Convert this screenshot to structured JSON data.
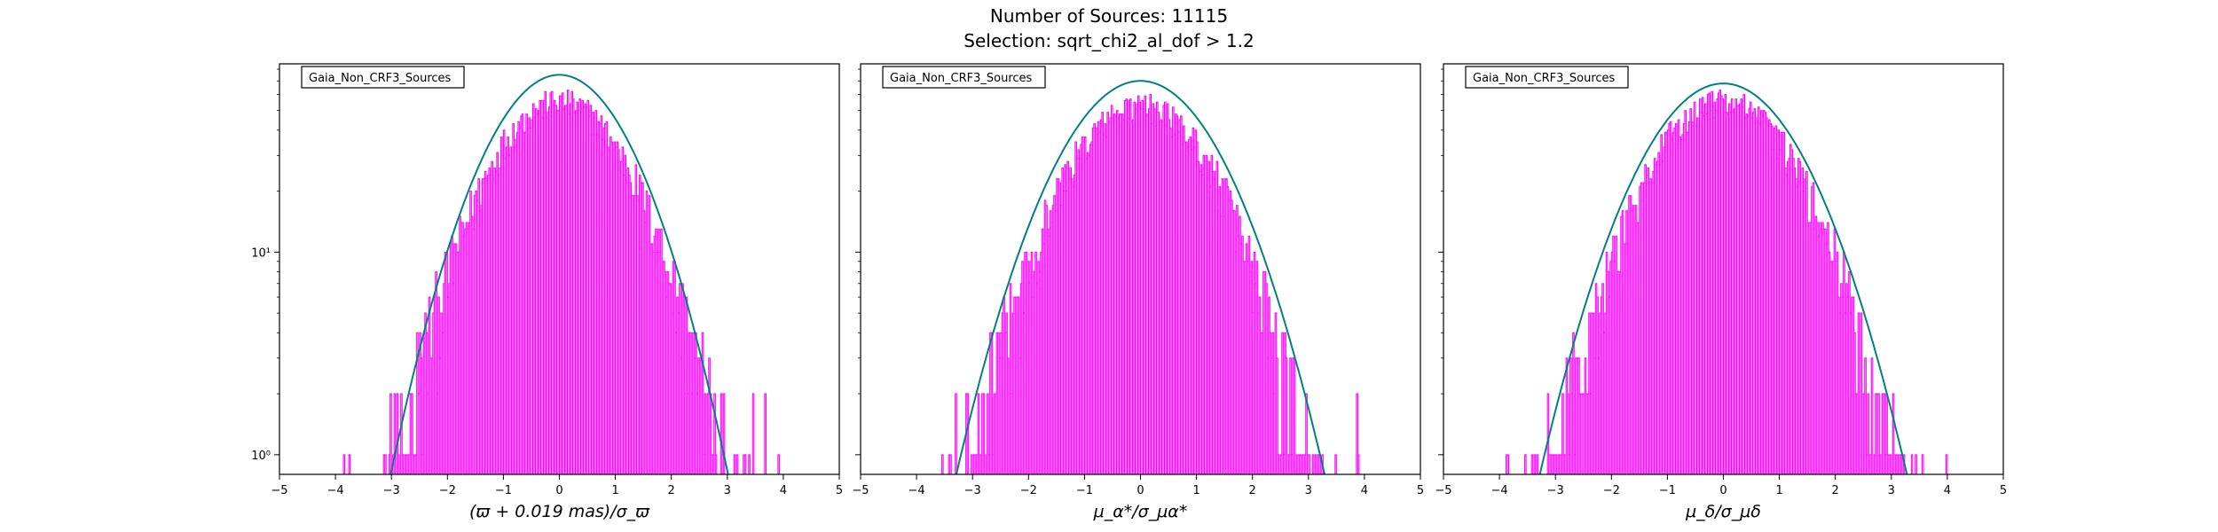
{
  "header": {
    "title": "Number of Sources: 11115",
    "subtitle": "Selection: sqrt_chi2_al_dof > 1.2"
  },
  "colors": {
    "histogram": "#ff00ff",
    "fit": "#008080"
  },
  "chart_data": [
    {
      "type": "line",
      "legend": "Gaia_Non_CRF3_Sources",
      "legend_position": "top-left",
      "xlabel": "(ϖ + 0.019 mas)/σ_ϖ",
      "xlim": [
        -5,
        5
      ],
      "xticks": [
        "−5",
        "−4",
        "−3",
        "−2",
        "−1",
        "0",
        "1",
        "2",
        "3",
        "4",
        "5"
      ],
      "yscale": "log",
      "ylim": [
        0.8,
        85
      ],
      "yticks": [
        {
          "label": "10⁰",
          "value": 1
        },
        {
          "label": "10¹",
          "value": 10
        }
      ],
      "series": [
        {
          "style": "histogram",
          "sigma": 1.0,
          "peak": 55,
          "range": [
            -4.6,
            4.6
          ]
        },
        {
          "style": "gaussian-fit",
          "sigma": 1.0,
          "peak": 75,
          "range": [
            -3.2,
            3.2
          ]
        }
      ]
    },
    {
      "type": "line",
      "legend": "Gaia_Non_CRF3_Sources",
      "legend_position": "top-left",
      "xlabel": "μ_α*/σ_μα*",
      "xlim": [
        -5,
        5
      ],
      "xticks": [
        "−5",
        "−4",
        "−3",
        "−2",
        "−1",
        "0",
        "1",
        "2",
        "3",
        "4",
        "5"
      ],
      "yscale": "log",
      "ylim": [
        0.8,
        85
      ],
      "yticks": [
        {
          "label": "",
          "value": 1
        },
        {
          "label": "",
          "value": 10
        }
      ],
      "series": [
        {
          "style": "histogram",
          "sigma": 1.05,
          "peak": 52,
          "range": [
            -4.8,
            4.8
          ]
        },
        {
          "style": "gaussian-fit",
          "sigma": 1.1,
          "peak": 70,
          "range": [
            -3.3,
            3.3
          ]
        }
      ]
    },
    {
      "type": "line",
      "legend": "Gaia_Non_CRF3_Sources",
      "legend_position": "top-left",
      "xlabel": "μ_δ/σ_μδ",
      "xlim": [
        -5,
        5
      ],
      "xticks": [
        "−5",
        "−4",
        "−3",
        "−2",
        "−1",
        "0",
        "1",
        "2",
        "3",
        "4",
        "5"
      ],
      "yscale": "log",
      "ylim": [
        0.8,
        85
      ],
      "yticks": [
        {
          "label": "",
          "value": 1
        },
        {
          "label": "",
          "value": 10
        }
      ],
      "series": [
        {
          "style": "histogram",
          "sigma": 1.05,
          "peak": 55,
          "range": [
            -4.8,
            4.8
          ]
        },
        {
          "style": "gaussian-fit",
          "sigma": 1.1,
          "peak": 68,
          "range": [
            -3.3,
            3.3
          ]
        }
      ]
    }
  ]
}
